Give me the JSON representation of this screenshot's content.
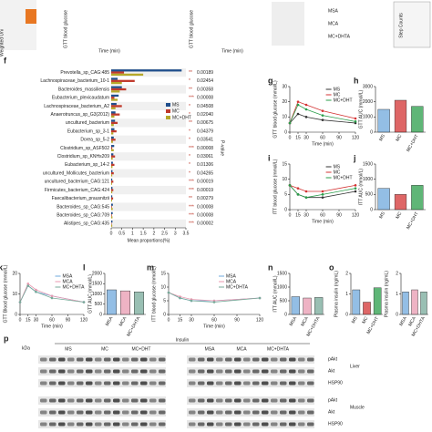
{
  "top_row": {
    "texts": [
      "Weighted Uni",
      "GTT blood glucose",
      "Time (min)",
      "GTT blood glucose",
      "Time (min)",
      "MSA",
      "MCA",
      "MC+DHTA",
      "Step Counts"
    ]
  },
  "chart_data": [
    {
      "panel": "f",
      "type": "hbar",
      "xlabel": "Mean proportions(%)",
      "plabel": "P-value",
      "categories": [
        "Prevotella_sp_CAG:485",
        "Lachnospiraceae_bacterium_10-1",
        "Bacteroides_massiliensis",
        "Eubacterium_plexicaudatum",
        "Lachnospiraceae_bacterium_A2",
        "Anaerotruncus_sp_G3(2012)",
        "uncultured_bacterium",
        "Eubacterium_sp_3-1",
        "Dorea_sp_5-2",
        "Clostridium_sp_ASF502",
        "Clostridium_sp_KNHs209",
        "Eubacterium_sp_14-2",
        "uncultured_Mollicutes_bacterium",
        "uncultured_bacterium_CAG:121",
        "Firmicutes_bacterium_CAG:424",
        "Faecalibacterium_prausnitzii",
        "Bacteroides_sp_CAG:545",
        "Bacteroides_sp_CAG:709",
        "Alistipes_sp_CAG:435"
      ],
      "series": [
        {
          "name": "MS",
          "color": "#1f4e8c",
          "values": [
            3.3,
            0.3,
            0.5,
            0.35,
            0.25,
            0.2,
            0.18,
            0.15,
            0.12,
            0.14,
            0.1,
            0.08,
            0.06,
            0.05,
            0.06,
            0.05,
            0.08,
            0.07,
            0.06
          ]
        },
        {
          "name": "MC",
          "color": "#c0392b",
          "values": [
            0.6,
            1.1,
            0.7,
            0.15,
            0.5,
            0.4,
            0.3,
            0.25,
            0.2,
            0.05,
            0.18,
            0.15,
            0.12,
            0.1,
            0.1,
            0.09,
            0.03,
            0.03,
            0.02
          ]
        },
        {
          "name": "MC+DHT",
          "color": "#b5a82a",
          "values": [
            1.5,
            0.5,
            0.4,
            0.3,
            0.2,
            0.15,
            0.12,
            0.1,
            0.08,
            0.12,
            0.07,
            0.06,
            0.05,
            0.04,
            0.05,
            0.04,
            0.07,
            0.06,
            0.05
          ]
        }
      ],
      "stars": [
        "**",
        "*",
        "**",
        "***",
        "*",
        "*",
        "**",
        "*",
        "*",
        "***",
        "*",
        "*",
        "*",
        "***",
        "***",
        "**",
        "***",
        "***",
        "***"
      ],
      "pvalues": [
        "0.00189",
        "0.02454",
        "0.00358",
        "0.00008",
        "0.04508",
        "0.02040",
        "0.00675",
        "0.04379",
        "0.03541",
        "0.00008",
        "0.03061",
        "0.01306",
        "0.04265",
        "0.00019",
        "0.00019",
        "0.00279",
        "0.00008",
        "0.00008",
        "0.00002"
      ],
      "xlim": [
        0,
        3.5
      ],
      "xticks": [
        0,
        0.5,
        1,
        1.5,
        2,
        2.5,
        3,
        3.5
      ]
    },
    {
      "panel": "g",
      "type": "line",
      "ylabel": "GTT blood glucose (mmol/L)",
      "xlabel": "Time (min)",
      "x": [
        0,
        15,
        30,
        60,
        120
      ],
      "xlim": [
        0,
        120
      ],
      "xticks": [
        0,
        15,
        30,
        60,
        90,
        120
      ],
      "ylim": [
        0,
        30
      ],
      "yticks": [
        0,
        10,
        20,
        30
      ],
      "series": [
        {
          "name": "MS",
          "color": "#333333",
          "values": [
            6,
            12,
            10,
            8,
            6
          ]
        },
        {
          "name": "MC",
          "color": "#d33333",
          "values": [
            6,
            20,
            18,
            14,
            9
          ]
        },
        {
          "name": "MC+DHT",
          "color": "#2a9d4a",
          "values": [
            6,
            18,
            15,
            11,
            7
          ]
        }
      ]
    },
    {
      "panel": "h",
      "type": "bar",
      "ylabel": "GTT AUC (mmol/L)",
      "categories": [
        "MS",
        "MC",
        "MC+DHT"
      ],
      "values": [
        1500,
        2100,
        1700
      ],
      "colors": [
        "#6fa8dc",
        "#d33333",
        "#2a9d4a"
      ],
      "ylim": [
        0,
        3000
      ],
      "yticks": [
        0,
        1000,
        2000,
        3000
      ]
    },
    {
      "panel": "i",
      "type": "line",
      "ylabel": "ITT blood glucose (mmol/L)",
      "xlabel": "Time (min)",
      "x": [
        0,
        15,
        30,
        60,
        120
      ],
      "xlim": [
        0,
        120
      ],
      "xticks": [
        0,
        15,
        30,
        60,
        90,
        120
      ],
      "ylim": [
        0,
        15
      ],
      "yticks": [
        0,
        5,
        10,
        15
      ],
      "series": [
        {
          "name": "MS",
          "color": "#333333",
          "values": [
            8,
            5,
            4,
            4,
            6
          ]
        },
        {
          "name": "MC",
          "color": "#d33333",
          "values": [
            8,
            7,
            6,
            6,
            8
          ]
        },
        {
          "name": "MC+DHT",
          "color": "#2a9d4a",
          "values": [
            8,
            5,
            4,
            5,
            7
          ]
        }
      ]
    },
    {
      "panel": "j",
      "type": "bar",
      "ylabel": "ITT AUC (mmol/L)",
      "categories": [
        "MS",
        "MC",
        "MC+DHT"
      ],
      "values": [
        700,
        500,
        800
      ],
      "colors": [
        "#6fa8dc",
        "#d33333",
        "#2a9d4a"
      ],
      "ylim": [
        0,
        1500
      ],
      "yticks": [
        0,
        500,
        1000,
        1500
      ]
    },
    {
      "panel": "k",
      "type": "line",
      "ylabel": "GTT Blood glucose (mmol/L)",
      "xlabel": "Time (min)",
      "x": [
        0,
        15,
        30,
        60,
        120
      ],
      "xlim": [
        0,
        120
      ],
      "xticks": [
        0,
        15,
        30,
        60,
        90,
        120
      ],
      "ylim": [
        0,
        20
      ],
      "yticks": [
        0,
        10,
        20
      ],
      "series": [
        {
          "name": "MSA",
          "color": "#6fa8dc",
          "values": [
            6,
            14,
            11,
            9,
            6
          ]
        },
        {
          "name": "MCA",
          "color": "#e89ab0",
          "values": [
            6,
            15,
            12,
            9,
            6
          ]
        },
        {
          "name": "MC+DHTA",
          "color": "#77aa99",
          "values": [
            6,
            14,
            11,
            8,
            6
          ]
        }
      ]
    },
    {
      "panel": "l",
      "type": "bar",
      "ylabel": "GTT AUC (mmol/L)",
      "categories": [
        "MSA",
        "MCA",
        "MC+DHTA"
      ],
      "values": [
        1200,
        1150,
        1100
      ],
      "colors": [
        "#6fa8dc",
        "#e89ab0",
        "#77aa99"
      ],
      "ylim": [
        0,
        2000
      ],
      "yticks": [
        0,
        500,
        1000,
        1500,
        2000
      ]
    },
    {
      "panel": "m",
      "type": "line",
      "ylabel": "ITT blood glucose (mmol/L)",
      "xlabel": "Time (min)",
      "x": [
        0,
        15,
        30,
        60,
        120
      ],
      "xlim": [
        0,
        120
      ],
      "xticks": [
        0,
        15,
        30,
        60,
        90,
        120
      ],
      "ylim": [
        0,
        15
      ],
      "yticks": [
        0,
        5,
        10,
        15
      ],
      "series": [
        {
          "name": "MSA",
          "color": "#6fa8dc",
          "values": [
            8,
            6,
            5,
            5,
            6
          ]
        },
        {
          "name": "MCA",
          "color": "#e89ab0",
          "values": [
            8,
            6.5,
            5.5,
            5,
            6
          ]
        },
        {
          "name": "MC+DHTA",
          "color": "#77aa99",
          "values": [
            8,
            6,
            5,
            4.5,
            6
          ]
        }
      ]
    },
    {
      "panel": "n",
      "type": "bar",
      "ylabel": "ITT AUC (mmol/L)",
      "categories": [
        "MSA",
        "MCA",
        "MC+DHTA"
      ],
      "values": [
        650,
        600,
        620
      ],
      "colors": [
        "#6fa8dc",
        "#e89ab0",
        "#77aa99"
      ],
      "ylim": [
        0,
        1500
      ],
      "yticks": [
        0,
        500,
        1000,
        1500
      ]
    },
    {
      "panel": "o",
      "type": "bar",
      "ylabel": "Plasma insulin (ng/mL)",
      "categories": [
        "MS",
        "MC",
        "MC+DHT"
      ],
      "values": [
        1.2,
        0.6,
        1.3
      ],
      "colors": [
        "#6fa8dc",
        "#d33333",
        "#2a9d4a"
      ],
      "ylim": [
        0,
        2
      ],
      "yticks": [
        0,
        1,
        2
      ]
    },
    {
      "type": "bar",
      "ylabel": "Plasma insulin (ng/mL)",
      "categories": [
        "MSA",
        "MCA",
        "MC+DHTA"
      ],
      "values": [
        1.1,
        1.2,
        1.1
      ],
      "colors": [
        "#6fa8dc",
        "#e89ab0",
        "#77aa99"
      ],
      "ylim": [
        0,
        2
      ],
      "yticks": [
        0,
        1,
        2
      ]
    }
  ],
  "blot": {
    "panel": "p",
    "kda": "kDa",
    "insulin": "Insulin",
    "groups": [
      "MS",
      "MC",
      "MC+DHT",
      "MSA",
      "MCA",
      "MC+DHTA"
    ],
    "rows": [
      "pAkt",
      "Akt",
      "HSP90",
      "pAkt",
      "Akt",
      "HSP90"
    ],
    "tissues": [
      "Liver",
      "Muscle"
    ]
  }
}
